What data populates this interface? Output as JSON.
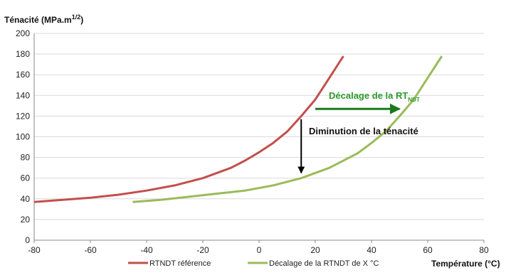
{
  "chart_data": {
    "type": "line",
    "title": "",
    "ylabel": "Ténacité (MPa.m",
    "ylabel_sup": "1/2",
    "ylabel_close": ")",
    "xlabel": "Température (°C)",
    "xlim": [
      -80,
      80
    ],
    "ylim": [
      0,
      200
    ],
    "xticks": [
      -80,
      -60,
      -40,
      -20,
      0,
      20,
      40,
      60,
      80
    ],
    "yticks": [
      0,
      20,
      40,
      60,
      80,
      100,
      120,
      140,
      160,
      180,
      200
    ],
    "grid": "horizontal",
    "legend_position": "bottom",
    "series": [
      {
        "name": "RTNDT référence",
        "color": "#c0504d",
        "x": [
          -80,
          -70,
          -60,
          -50,
          -40,
          -30,
          -20,
          -10,
          -5,
          0,
          5,
          10,
          15,
          20,
          25,
          30
        ],
        "y": [
          37,
          39,
          41,
          44,
          48,
          53,
          60,
          70,
          77,
          85,
          94,
          105,
          120,
          136,
          157,
          178
        ]
      },
      {
        "name": "Décalage de la RTNDT de X °C",
        "color": "#9bbb59",
        "x": [
          -45,
          -35,
          -25,
          -15,
          -5,
          5,
          15,
          25,
          35,
          40,
          45,
          50,
          55,
          60,
          65
        ],
        "y": [
          37,
          39,
          42,
          45,
          48,
          53,
          60,
          70,
          84,
          94,
          105,
          120,
          136,
          157,
          178
        ]
      }
    ],
    "annotations": [
      {
        "id": "shift",
        "text": "Décalage de la RT",
        "subscript": "NDT",
        "color": "#2e9a2e",
        "arrow": {
          "from": [
            20,
            127
          ],
          "to": [
            50,
            127
          ],
          "color": "#1a7a1a"
        }
      },
      {
        "id": "drop",
        "text": "Diminution de la ténacité",
        "color": "#111111",
        "arrow": {
          "from": [
            15,
            117
          ],
          "to": [
            15,
            65
          ],
          "color": "#000000"
        }
      }
    ]
  }
}
